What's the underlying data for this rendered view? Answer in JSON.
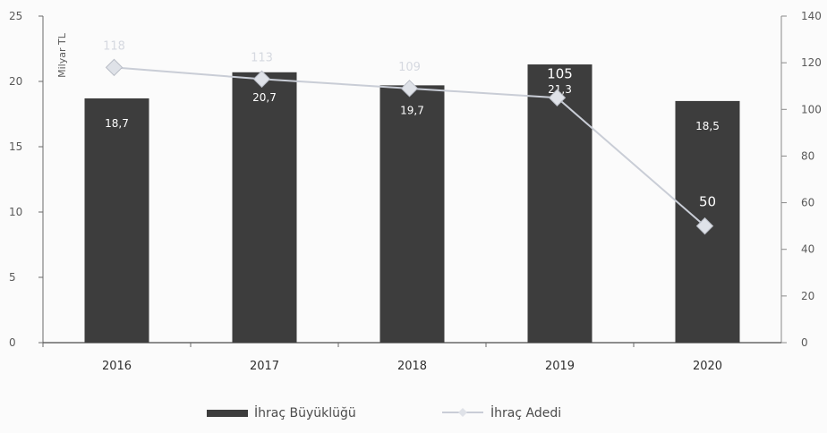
{
  "chart_data": {
    "type": "bar",
    "categories": [
      "2016",
      "2017",
      "2018",
      "2019",
      "2020"
    ],
    "series": [
      {
        "name": "İhraç Büyüklüğü",
        "type": "bar",
        "axis": "left",
        "values": [
          18.7,
          20.7,
          19.7,
          21.3,
          18.5
        ],
        "labels": [
          "18,7",
          "20,7",
          "19,7",
          "21,3",
          "18,5"
        ],
        "color": "#3d3d3d"
      },
      {
        "name": "İhraç Adedi",
        "type": "line",
        "axis": "right",
        "values": [
          118,
          113,
          109,
          105,
          50
        ],
        "labels": [
          "118",
          "113",
          "109",
          "105",
          "50"
        ],
        "color": "#c9cdd6"
      }
    ],
    "ylabel": "Milyar TL",
    "ylim": [
      0,
      25
    ],
    "y_ticks": [
      "0",
      "5",
      "10",
      "15",
      "20",
      "25"
    ],
    "y2lim": [
      0,
      140
    ],
    "y2_ticks": [
      "0",
      "20",
      "40",
      "60",
      "80",
      "100",
      "120",
      "140"
    ],
    "legend_position": "bottom-center",
    "grid": false
  }
}
